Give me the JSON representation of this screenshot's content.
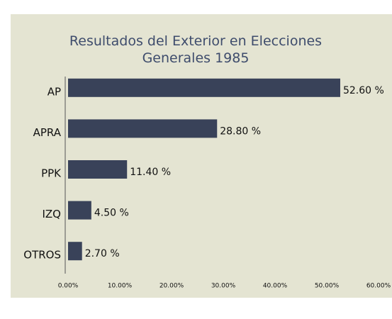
{
  "chart_data": {
    "type": "bar",
    "orientation": "horizontal",
    "title": "Resultados del Exterior en Elecciones Generales 1985",
    "categories": [
      "AP",
      "APRA",
      "PPK",
      "IZQ",
      "OTROS"
    ],
    "values": [
      52.6,
      28.8,
      11.4,
      4.5,
      2.7
    ],
    "value_labels": [
      "52.60 %",
      "28.80 %",
      "11.40 %",
      "4.50 %",
      "2.70 %"
    ],
    "color": "#394259",
    "xlim": [
      0,
      60
    ],
    "xticks": [
      {
        "value": 0,
        "label": "0.00%"
      },
      {
        "value": 10,
        "label": "10.00%"
      },
      {
        "value": 20,
        "label": "20.00%"
      },
      {
        "value": 30,
        "label": "30.00%"
      },
      {
        "value": 40,
        "label": "40.00%"
      },
      {
        "value": 50,
        "label": "50.00%"
      },
      {
        "value": 60,
        "label": "60.00%"
      }
    ],
    "grid": false
  }
}
